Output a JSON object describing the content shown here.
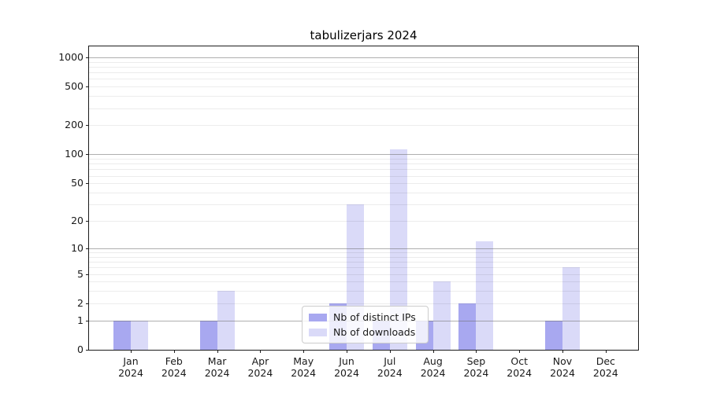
{
  "title": "tabulizerjars 2024",
  "chart_data": {
    "type": "bar",
    "title": "tabulizerjars 2024",
    "categories": [
      "Jan 2024",
      "Feb 2024",
      "Mar 2024",
      "Apr 2024",
      "May 2024",
      "Jun 2024",
      "Jul 2024",
      "Aug 2024",
      "Sep 2024",
      "Oct 2024",
      "Nov 2024",
      "Dec 2024"
    ],
    "series": [
      {
        "name": "Nb of distinct IPs",
        "color": "#a8a8f0",
        "values": [
          1,
          0,
          1,
          0,
          0,
          2,
          1,
          1,
          2,
          0,
          1,
          0
        ]
      },
      {
        "name": "Nb of downloads",
        "color": "#dadaf8",
        "values": [
          1,
          0,
          3,
          0,
          0,
          30,
          112,
          4,
          12,
          0,
          6,
          0
        ]
      }
    ],
    "xlabel": "",
    "ylabel": "",
    "yaxis": {
      "scale": "log1p",
      "tick_labels": [
        "0",
        "1",
        "2",
        "5",
        "10",
        "20",
        "50",
        "100",
        "200",
        "500",
        "1000"
      ],
      "tick_values": [
        0,
        1,
        2,
        5,
        10,
        20,
        50,
        100,
        200,
        500,
        1000
      ],
      "major_grid_values": [
        1,
        10,
        100,
        1000
      ],
      "minor_grid_values": [
        2,
        3,
        4,
        5,
        6,
        7,
        8,
        9,
        20,
        30,
        40,
        50,
        60,
        70,
        80,
        90,
        200,
        300,
        400,
        500,
        600,
        700,
        800,
        900
      ],
      "ylim": [
        0,
        1300
      ]
    },
    "grid": true,
    "legend_position": "inside-bottom-center"
  },
  "colors": {
    "background": "#ffffff",
    "bar_distinct_ips": "#a8a8f0",
    "bar_downloads": "#dadaf8",
    "major_grid": "#b3b3b3",
    "minor_grid": "#e9e9e9",
    "axis": "#1c1c1c",
    "text": "#1a1a1a",
    "legend_border": "#cccccc"
  }
}
